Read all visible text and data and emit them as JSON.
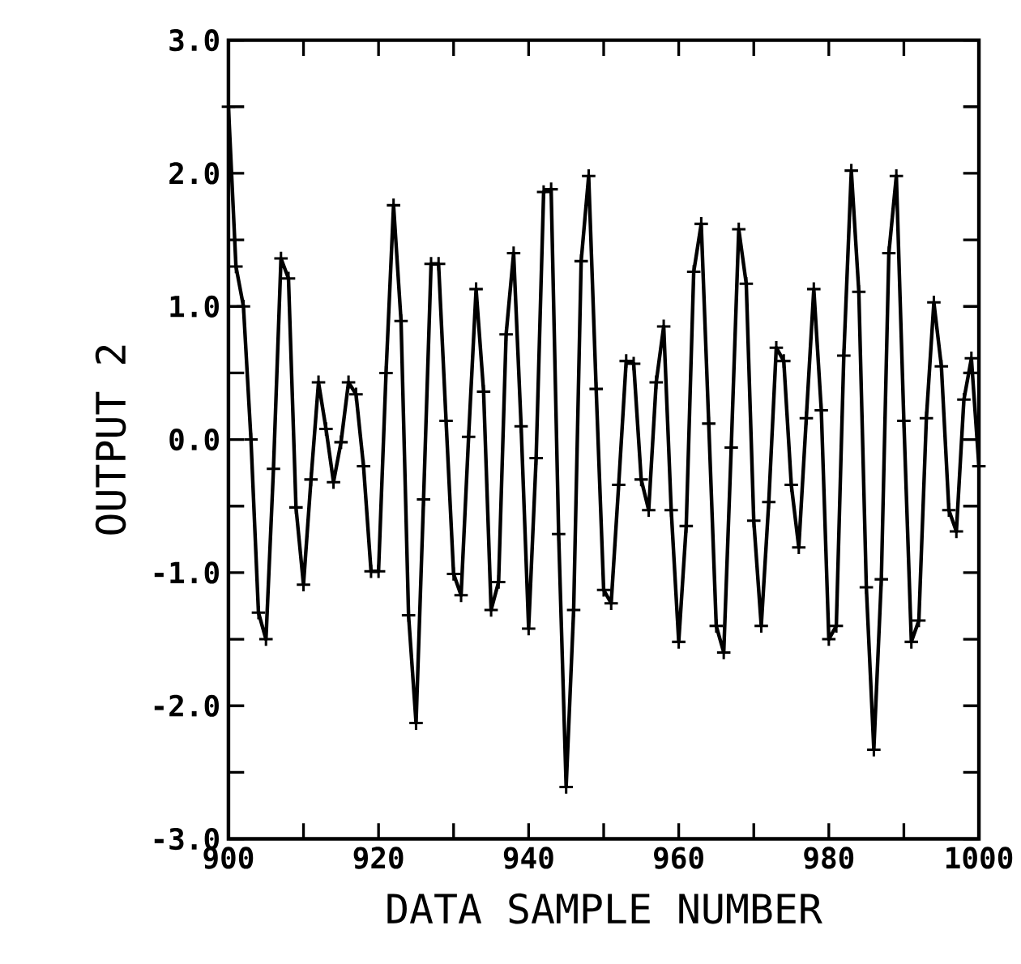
{
  "chart_data": {
    "type": "line",
    "xlabel": "DATA SAMPLE NUMBER",
    "ylabel": "OUTPUT 2",
    "marker": "cross",
    "line_style": "solid",
    "color": "#000000",
    "x": [
      900,
      901,
      902,
      903,
      904,
      905,
      906,
      907,
      908,
      909,
      910,
      911,
      912,
      913,
      914,
      915,
      916,
      917,
      918,
      919,
      920,
      921,
      922,
      923,
      924,
      925,
      926,
      927,
      928,
      929,
      930,
      931,
      932,
      933,
      934,
      935,
      936,
      937,
      938,
      939,
      940,
      941,
      942,
      943,
      944,
      945,
      946,
      947,
      948,
      949,
      950,
      951,
      952,
      953,
      954,
      955,
      956,
      957,
      958,
      959,
      960,
      961,
      962,
      963,
      964,
      965,
      966,
      967,
      968,
      969,
      970,
      971,
      972,
      973,
      974,
      975,
      976,
      977,
      978,
      979,
      980,
      981,
      982,
      983,
      984,
      985,
      986,
      987,
      988,
      989,
      990,
      991,
      992,
      993,
      994,
      995,
      996,
      997,
      998,
      999,
      1000
    ],
    "values": [
      2.5,
      1.3,
      1.0,
      0.0,
      -1.3,
      -1.5,
      -0.22,
      1.36,
      1.21,
      -0.51,
      -1.09,
      -0.3,
      0.43,
      0.08,
      -0.32,
      -0.02,
      0.43,
      0.34,
      -0.2,
      -0.99,
      -0.99,
      0.5,
      1.76,
      0.89,
      -1.32,
      -2.13,
      -0.45,
      1.32,
      1.32,
      0.14,
      -1.01,
      -1.17,
      0.02,
      1.13,
      0.36,
      -1.28,
      -1.07,
      0.79,
      1.4,
      0.1,
      -1.42,
      -0.14,
      1.86,
      1.88,
      -0.71,
      -2.61,
      -1.28,
      1.34,
      1.98,
      0.38,
      -1.13,
      -1.23,
      -0.34,
      0.59,
      0.57,
      -0.3,
      -0.53,
      0.43,
      0.85,
      -0.53,
      -1.52,
      -0.65,
      1.26,
      1.62,
      0.12,
      -1.4,
      -1.6,
      -0.06,
      1.58,
      1.17,
      -0.61,
      -1.4,
      -0.47,
      0.69,
      0.59,
      -0.34,
      -0.81,
      0.16,
      1.13,
      0.22,
      -1.5,
      -1.4,
      0.63,
      2.02,
      1.11,
      -1.11,
      -2.33,
      -1.05,
      1.4,
      1.98,
      0.14,
      -1.52,
      -1.36,
      0.16,
      1.03,
      0.55,
      -0.53,
      -0.69,
      0.3,
      0.61,
      -0.2
    ],
    "xlim": [
      900,
      1000
    ],
    "ylim": [
      -3,
      3
    ],
    "xticks": [
      900,
      {
        "value": 910,
        "label": null
      },
      920,
      {
        "value": 930,
        "label": null
      },
      940,
      {
        "value": 950,
        "label": null
      },
      960,
      {
        "value": 970,
        "label": null
      },
      980,
      {
        "value": 990,
        "label": null
      },
      1000
    ],
    "yticks": [
      {
        "value": -3,
        "label": "-3.0"
      },
      {
        "value": -2.5,
        "label": null
      },
      {
        "value": -2,
        "label": "-2.0"
      },
      {
        "value": -1.5,
        "label": null
      },
      {
        "value": -1,
        "label": "-1.0"
      },
      {
        "value": -0.5,
        "label": null
      },
      {
        "value": 0,
        "label": "0.0"
      },
      {
        "value": 0.5,
        "label": null
      },
      {
        "value": 1,
        "label": "1.0"
      },
      {
        "value": 1.5,
        "label": null
      },
      {
        "value": 2,
        "label": "2.0"
      },
      {
        "value": 2.5,
        "label": null
      },
      {
        "value": 3,
        "label": "3.0"
      }
    ]
  }
}
